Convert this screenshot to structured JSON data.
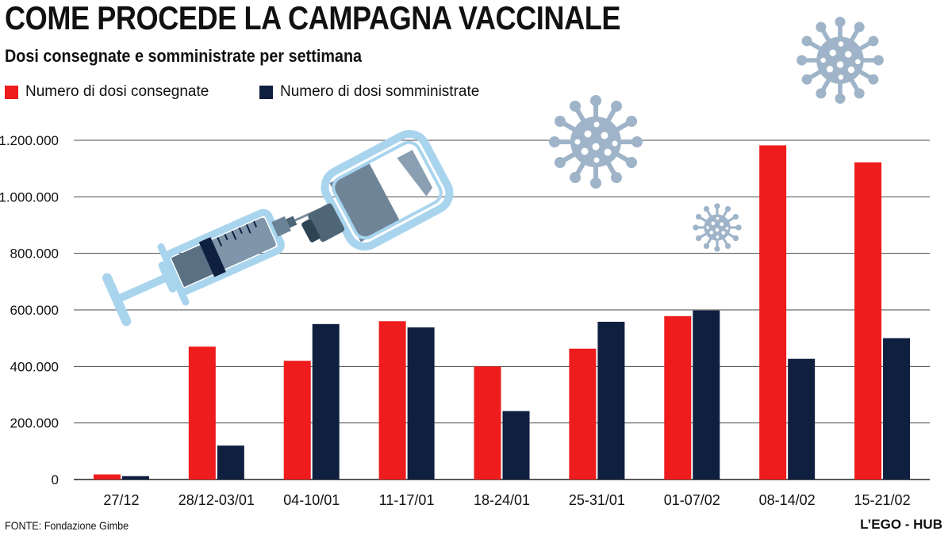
{
  "header": {
    "title": "COME PROCEDE LA CAMPAGNA VACCINALE",
    "subtitle": "Dosi consegnate e somministrate per settimana"
  },
  "legend": {
    "items": [
      {
        "label": "Numero di dosi consegnate",
        "color": "#ee1c1c"
      },
      {
        "label": "Numero di dosi somministrate",
        "color": "#0f1f40"
      }
    ]
  },
  "footer": {
    "source": "FONTE: Fondazione Gimbe",
    "brand": "L’EGO - HUB"
  },
  "illustration": {
    "icons": [
      "syringe-icon",
      "vaccine-vial-icon",
      "virus-icon"
    ],
    "virus_color": "#9fb4c8",
    "syringe_color": "#a9d4ee"
  },
  "chart_data": {
    "type": "bar",
    "title": "COME PROCEDE LA CAMPAGNA VACCINALE",
    "subtitle": "Dosi consegnate e somministrate per settimana",
    "xlabel": "",
    "ylabel": "",
    "categories": [
      "27/12",
      "28/12-03/01",
      "04-10/01",
      "11-17/01",
      "18-24/01",
      "25-31/01",
      "01-07/02",
      "08-14/02",
      "15-21/02"
    ],
    "series": [
      {
        "name": "Numero di dosi consegnate",
        "color": "#ee1c1c",
        "values": [
          18000,
          470000,
          420000,
          560000,
          400000,
          463000,
          578000,
          1182000,
          1122000
        ]
      },
      {
        "name": "Numero di dosi somministrate",
        "color": "#0f1f40",
        "values": [
          12000,
          120000,
          550000,
          538000,
          242000,
          558000,
          598000,
          427000,
          500000
        ]
      }
    ],
    "ylim": [
      0,
      1200000
    ],
    "yticks": [
      0,
      200000,
      400000,
      600000,
      800000,
      1000000,
      1200000
    ],
    "ytick_labels": [
      "0",
      "200.000",
      "400.000",
      "600.000",
      "800.000",
      "1.000.000",
      "1.200.000"
    ],
    "grid": true,
    "legend_position": "top-left"
  }
}
